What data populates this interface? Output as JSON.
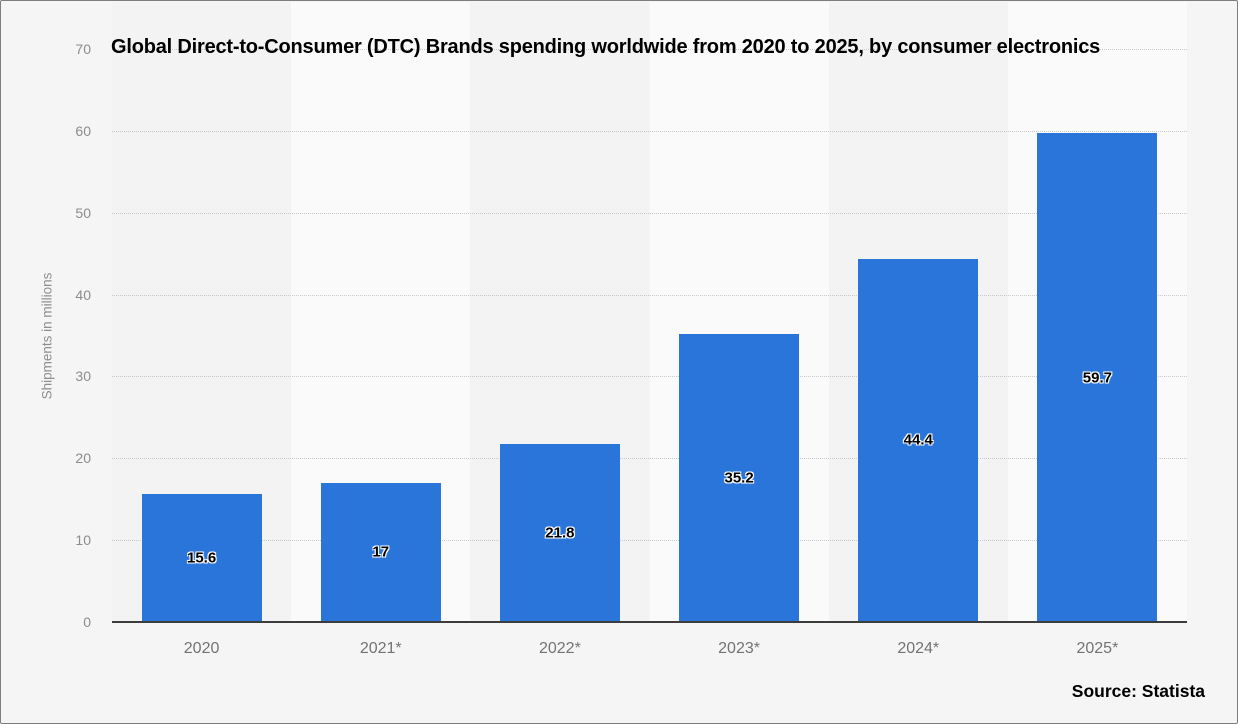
{
  "page": {
    "source_label": "Source: Statista"
  },
  "chart_data": {
    "type": "bar",
    "title": "Global Direct-to-Consumer (DTC) Brands spending worldwide from 2020 to 2025, by consumer electronics",
    "xlabel": "",
    "ylabel": "Shipments in millions",
    "categories": [
      "2020",
      "2021*",
      "2022*",
      "2023*",
      "2024*",
      "2025*"
    ],
    "values": [
      15.6,
      17,
      21.8,
      35.2,
      44.4,
      59.7
    ],
    "value_labels": [
      "15.6",
      "17",
      "21.8",
      "35.2",
      "44.4",
      "59.7"
    ],
    "ylim": [
      0,
      70
    ],
    "yticks": [
      0,
      10,
      20,
      30,
      40,
      50,
      60,
      70
    ],
    "grid": "horizontal-dotted",
    "legend": "none",
    "colors": {
      "bar": "#2a75da",
      "axis_line": "#3c3c3c",
      "gridline": "#c9c9c9",
      "y_tick_label": "#8c8c8c",
      "category_label": "#737373",
      "band_light": "#fafafa",
      "band_dark": "#f3f3f4",
      "page_background": "#f5f5f6",
      "value_label_text": "#000000"
    }
  }
}
